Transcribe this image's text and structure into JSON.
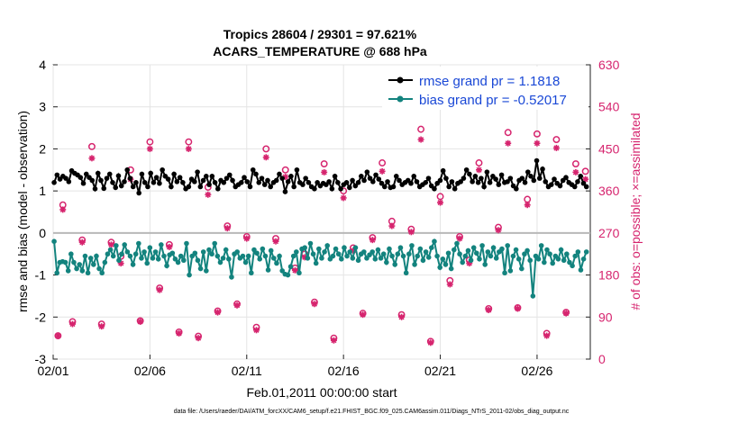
{
  "chart_data": {
    "type": "line",
    "title": "Tropics 28604 / 29301 = 97.621%",
    "subtitle": "ACARS_TEMPERATURE @ 688 hPa",
    "xlabel": "Feb.01,2011 00:00:00 start",
    "ylabel": "rmse and bias (model - observation)",
    "y2label": "# of obs: o=possible; ×=assimilated",
    "footnote": "data file: /Users/raeder/DAI/ATM_forcXX/CAM6_setup/f.e21.FHIST_BGC.f09_025.CAM6assim.011/Diags_NTrS_2011-02/obs_diag_output.nc",
    "xlim": [
      0,
      27.75
    ],
    "ylim": [
      -3,
      4
    ],
    "y2lim": [
      0,
      630
    ],
    "x_tick_values": [
      0,
      5,
      10,
      15,
      20,
      25
    ],
    "x_tick_labels": [
      "02/01",
      "02/06",
      "02/11",
      "02/16",
      "02/21",
      "02/26"
    ],
    "y_ticks": [
      "-3",
      "-2",
      "-1",
      "0",
      "1",
      "2",
      "3",
      "4"
    ],
    "y2_ticks": [
      "0",
      "90",
      "180",
      "270",
      "360",
      "450",
      "540",
      "630"
    ],
    "legend_position": "top-right",
    "series": [
      {
        "name": "rmse grand pr = 1.1818",
        "color": "#000000",
        "values": [
          1.2,
          1.38,
          1.28,
          1.35,
          1.3,
          1.22,
          1.48,
          1.42,
          1.38,
          1.32,
          1.18,
          1.4,
          1.32,
          1.25,
          1.05,
          1.42,
          1.25,
          1.06,
          1.3,
          1.4,
          1.2,
          1.08,
          1.36,
          1.12,
          1.22,
          1.5,
          1.3,
          1.1,
          1.2,
          0.95,
          1.4,
          1.2,
          1.1,
          1.42,
          1.2,
          1.32,
          1.18,
          1.5,
          1.35,
          1.28,
          1.1,
          1.4,
          1.22,
          1.32,
          1.2,
          1.05,
          1.1,
          1.28,
          1.22,
          1.45,
          1.1,
          1.25,
          1.35,
          1.15,
          1.35,
          1.2,
          1.05,
          1.25,
          1.2,
          1.3,
          1.38,
          1.25,
          1.1,
          1.15,
          1.2,
          1.32,
          1.22,
          1.1,
          1.5,
          1.4,
          1.2,
          1.3,
          1.15,
          1.25,
          1.1,
          1.2,
          1.25,
          1.4,
          1.3,
          0.98,
          1.22,
          1.35,
          1.1,
          1.5,
          1.2,
          1.15,
          1.3,
          1.2,
          1.1,
          1.05,
          1.2,
          1.12,
          1.18,
          1.15,
          1.22,
          1.05,
          1.35,
          1.2,
          1.05,
          1.15,
          1.2,
          1.08,
          1.25,
          1.12,
          1.2,
          1.35,
          1.25,
          1.45,
          1.3,
          1.22,
          1.38,
          1.28,
          1.18,
          1.1,
          1.22,
          1.08,
          1.1,
          1.35,
          1.25,
          1.15,
          1.2,
          1.25,
          1.18,
          1.35,
          1.22,
          1.1,
          1.15,
          1.2,
          1.3,
          1.12,
          1.05,
          1.18,
          1.25,
          1.48,
          1.3,
          1.1,
          1.22,
          1.05,
          1.18,
          1.22,
          1.3,
          1.5,
          1.4,
          1.22,
          1.35,
          1.2,
          1.3,
          1.1,
          1.45,
          1.2,
          1.35,
          1.28,
          1.15,
          1.38,
          1.2,
          1.22,
          1.3,
          1.12,
          1.05,
          1.25,
          1.3,
          1.2,
          1.45,
          1.35,
          1.25,
          1.72,
          1.3,
          1.52,
          1.22,
          1.1,
          1.15,
          1.28,
          1.18,
          1.12,
          1.25,
          1.32,
          1.2,
          1.15,
          1.1,
          1.22,
          1.35,
          1.18,
          1.1
        ]
      },
      {
        "name": "bias grand pr = -0.52017",
        "color": "#13837e",
        "values": [
          -0.2,
          -0.95,
          -0.7,
          -0.68,
          -0.7,
          -0.9,
          -0.5,
          -0.7,
          -0.85,
          -0.75,
          -0.9,
          -0.55,
          -0.95,
          -0.6,
          -0.75,
          -0.55,
          -0.85,
          -0.95,
          -0.7,
          -0.5,
          -0.4,
          -0.55,
          -0.3,
          -0.65,
          -0.5,
          -0.28,
          -0.45,
          -0.55,
          -0.75,
          -0.5,
          -0.25,
          -0.6,
          -0.45,
          -0.72,
          -0.35,
          -0.6,
          -0.45,
          -0.62,
          -0.28,
          -0.55,
          -0.78,
          -0.52,
          -0.48,
          -0.62,
          -0.7,
          -0.55,
          -0.65,
          -0.25,
          -1.0,
          -0.55,
          -0.48,
          -0.65,
          -0.85,
          -0.45,
          -0.9,
          -0.4,
          -0.5,
          -0.25,
          -0.55,
          -0.7,
          -0.6,
          -0.4,
          -0.62,
          -1.05,
          -0.5,
          -0.45,
          -0.6,
          -0.55,
          -0.7,
          -0.55,
          -0.95,
          -0.4,
          -0.48,
          -0.62,
          -0.38,
          -0.55,
          -0.88,
          -0.42,
          -0.6,
          -0.72,
          -0.55,
          -0.9,
          -0.98,
          -1.0,
          -0.8,
          -0.55,
          -0.45,
          -0.95,
          -0.38,
          -0.35,
          -0.6,
          -0.25,
          -0.5,
          -0.72,
          -0.38,
          -0.6,
          -0.45,
          -0.3,
          -0.62,
          -0.55,
          -0.38,
          -0.5,
          -0.62,
          -0.35,
          -0.55,
          -0.45,
          -0.6,
          -0.35,
          -0.65,
          -0.5,
          -0.45,
          -0.6,
          -0.52,
          -0.45,
          -0.62,
          -0.4,
          -0.6,
          -0.5,
          -0.7,
          -0.38,
          -0.55,
          -0.75,
          -0.5,
          -0.35,
          -0.55,
          -0.95,
          -0.5,
          -0.3,
          -0.75,
          -0.55,
          -0.38,
          -0.65,
          -0.45,
          -0.58,
          -0.35,
          -0.2,
          -0.55,
          -0.82,
          -0.62,
          -0.75,
          -0.48,
          -0.85,
          -0.4,
          -0.25,
          -0.5,
          -0.7,
          -0.55,
          -0.42,
          -0.65,
          -0.35,
          -0.48,
          -0.62,
          -0.3,
          -0.75,
          -0.45,
          -0.55,
          -0.35,
          -0.6,
          -0.45,
          -0.38,
          -0.95,
          -0.3,
          -0.9,
          -0.55,
          -0.4,
          -0.62,
          -0.85,
          -0.5,
          -0.42,
          -0.65,
          -1.5,
          -0.55,
          -0.62,
          -0.3,
          -0.7,
          -0.4,
          -0.5,
          -0.72,
          -0.55,
          -0.62,
          -0.4,
          -0.65,
          -0.5,
          -0.7,
          -0.78,
          -0.55,
          -0.45,
          -0.88,
          -0.62,
          -0.45
        ]
      },
      {
        "name": "obs possible",
        "marker": "o",
        "color": "#d6246e",
        "x": [
          0.25,
          0.5,
          1,
          1.5,
          2,
          2.5,
          3,
          3.5,
          4,
          4.5,
          5,
          5.5,
          6,
          6.5,
          7,
          7.5,
          8,
          8.5,
          9,
          9.5,
          10,
          10.5,
          11,
          11.5,
          12,
          12.5,
          13,
          13.5,
          14,
          14.5,
          15,
          15.5,
          16,
          16.5,
          17,
          17.5,
          18,
          18.5,
          19,
          19.5,
          20,
          20.5,
          21,
          21.5,
          22,
          22.5,
          23,
          23.5,
          24,
          24.5,
          25,
          25.5,
          26,
          26.5,
          27,
          27.5
        ],
        "values": [
          50,
          330,
          80,
          255,
          455,
          75,
          250,
          220,
          405,
          82,
          465,
          152,
          245,
          58,
          465,
          49,
          368,
          103,
          285,
          118,
          262,
          68,
          450,
          258,
          405,
          195,
          225,
          122,
          418,
          45,
          360,
          238,
          98,
          260,
          420,
          295,
          95,
          278,
          492,
          38,
          348,
          168,
          262,
          212,
          420,
          108,
          282,
          485,
          110,
          342,
          482,
          55,
          470,
          100,
          418,
          402
        ]
      },
      {
        "name": "obs assimilated",
        "marker": "×",
        "color": "#d6246e",
        "x": [
          0.25,
          0.5,
          1,
          1.5,
          2,
          2.5,
          3,
          3.5,
          4,
          4.5,
          5,
          5.5,
          6,
          6.5,
          7,
          7.5,
          8,
          8.5,
          9,
          9.5,
          10,
          10.5,
          11,
          11.5,
          12,
          12.5,
          13,
          13.5,
          14,
          14.5,
          15,
          15.5,
          16,
          16.5,
          17,
          17.5,
          18,
          18.5,
          19,
          19.5,
          20,
          20.5,
          21,
          21.5,
          22,
          22.5,
          23,
          23.5,
          24,
          24.5,
          25,
          25.5,
          26,
          26.5,
          27,
          27.5
        ],
        "values": [
          50,
          320,
          75,
          250,
          430,
          70,
          245,
          205,
          385,
          80,
          450,
          148,
          240,
          55,
          450,
          45,
          352,
          100,
          280,
          115,
          258,
          62,
          432,
          252,
          390,
          190,
          218,
          118,
          400,
          40,
          345,
          232,
          95,
          255,
          402,
          285,
          90,
          272,
          470,
          35,
          335,
          160,
          258,
          205,
          405,
          105,
          276,
          462,
          108,
          330,
          462,
          50,
          452,
          98,
          400,
          385
        ]
      }
    ]
  }
}
